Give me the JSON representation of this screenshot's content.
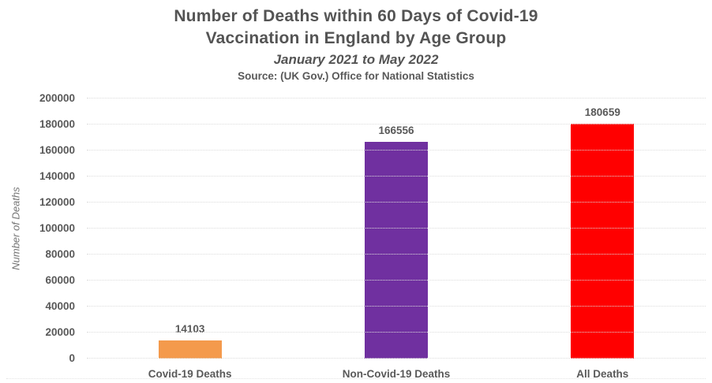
{
  "header": {
    "title_line1": "Number of Deaths within 60 Days of Covid-19",
    "title_line2": "Vaccination in England by Age Group",
    "subtitle": "January 2021 to May 2022",
    "source": "Source: (UK Gov.) Office for National Statistics"
  },
  "chart_data": {
    "type": "bar",
    "title": "Number of Deaths within 60 Days of Covid-19 Vaccination in England by Age Group",
    "subtitle": "January 2021 to May 2022",
    "source": "Source: (UK Gov.) Office for National Statistics",
    "categories": [
      "Covid-19 Deaths",
      "Non-Covid-19 Deaths",
      "All Deaths"
    ],
    "values": [
      14103,
      166556,
      180659
    ],
    "data_labels": [
      "14103",
      "166556",
      "180659"
    ],
    "bar_colors": [
      "#F49A4C",
      "#7030A0",
      "#FF0000"
    ],
    "xlabel": "",
    "ylabel": "Number of Deaths",
    "ylim": [
      0,
      200000
    ],
    "ytick_interval": 20000,
    "ytick_labels": [
      "0",
      "20000",
      "40000",
      "60000",
      "80000",
      "100000",
      "120000",
      "140000",
      "160000",
      "180000",
      "200000"
    ],
    "grid": "horizontal dotted, on",
    "legend": "none",
    "text_color": "#595959",
    "title_color": "#545454",
    "grid_color": "#dcdcdc",
    "background_color": "#ffffff"
  }
}
